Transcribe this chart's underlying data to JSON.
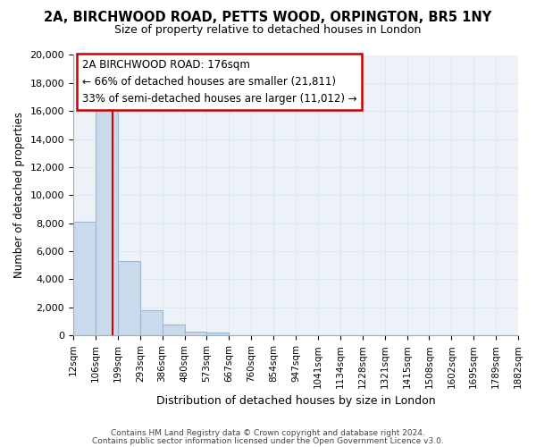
{
  "title": "2A, BIRCHWOOD ROAD, PETTS WOOD, ORPINGTON, BR5 1NY",
  "subtitle": "Size of property relative to detached houses in London",
  "xlabel": "Distribution of detached houses by size in London",
  "ylabel": "Number of detached properties",
  "bar_color": "#c8daec",
  "bar_edge_color": "#9ab8d0",
  "vline_x": 176,
  "vline_color": "#cc0000",
  "categories": [
    "12sqm",
    "106sqm",
    "199sqm",
    "293sqm",
    "386sqm",
    "480sqm",
    "573sqm",
    "667sqm",
    "760sqm",
    "854sqm",
    "947sqm",
    "1041sqm",
    "1134sqm",
    "1228sqm",
    "1321sqm",
    "1415sqm",
    "1508sqm",
    "1602sqm",
    "1695sqm",
    "1789sqm",
    "1882sqm"
  ],
  "bin_edges": [
    12,
    106,
    199,
    293,
    386,
    480,
    573,
    667,
    760,
    854,
    947,
    1041,
    1134,
    1228,
    1321,
    1415,
    1508,
    1602,
    1695,
    1789,
    1882
  ],
  "values": [
    8100,
    16500,
    5300,
    1800,
    750,
    290,
    230,
    0,
    0,
    0,
    0,
    0,
    0,
    0,
    0,
    0,
    0,
    0,
    0,
    0
  ],
  "ylim": [
    0,
    20000
  ],
  "yticks": [
    0,
    2000,
    4000,
    6000,
    8000,
    10000,
    12000,
    14000,
    16000,
    18000,
    20000
  ],
  "annotation_title": "2A BIRCHWOOD ROAD: 176sqm",
  "annotation_line1": "← 66% of detached houses are smaller (21,811)",
  "annotation_line2": "33% of semi-detached houses are larger (11,012) →",
  "footer1": "Contains HM Land Registry data © Crown copyright and database right 2024.",
  "footer2": "Contains public sector information licensed under the Open Government Licence v3.0.",
  "grid_color": "#dce8f0",
  "background_color": "#edf2f8"
}
